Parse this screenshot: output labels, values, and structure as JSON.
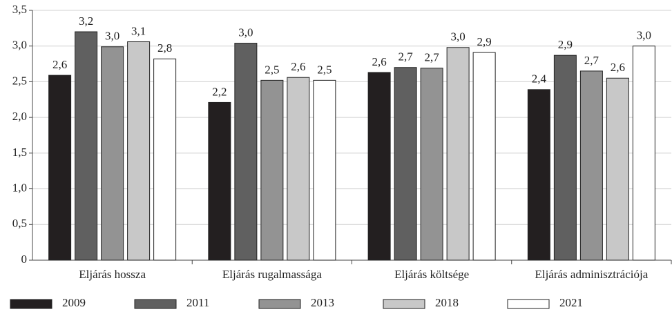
{
  "chart_data": {
    "type": "bar",
    "categories": [
      "Eljárás hossza",
      "Eljárás rugalmassága",
      "Eljárás költsége",
      "Eljárás adminisztrációja"
    ],
    "series": [
      {
        "name": "2009",
        "color": "#231f20",
        "values": [
          2.59,
          2.21,
          2.63,
          2.39
        ],
        "value_labels": [
          "2,6",
          "2,2",
          "2,6",
          "2,4"
        ]
      },
      {
        "name": "2011",
        "color": "#606060",
        "values": [
          3.2,
          3.04,
          2.7,
          2.87
        ],
        "value_labels": [
          "3,2",
          "3,0",
          "2,7",
          "2,9"
        ]
      },
      {
        "name": "2013",
        "color": "#939393",
        "values": [
          2.99,
          2.52,
          2.69,
          2.65
        ],
        "value_labels": [
          "3,0",
          "2,5",
          "2,7",
          "2,7"
        ]
      },
      {
        "name": "2018",
        "color": "#c8c8c8",
        "values": [
          3.06,
          2.56,
          2.98,
          2.55
        ],
        "value_labels": [
          "3,1",
          "2,6",
          "3,0",
          "2,6"
        ]
      },
      {
        "name": "2021",
        "color": "#ffffff",
        "values": [
          2.82,
          2.52,
          2.91,
          3.0
        ],
        "value_labels": [
          "2,8",
          "2,5",
          "2,9",
          "3,0"
        ]
      }
    ],
    "ylim": [
      0,
      3.5
    ],
    "yticks": [
      0,
      {
        "value": 0.5,
        "label": "0,5"
      },
      {
        "value": 1,
        "label": "1,0"
      },
      {
        "value": 1.5,
        "label": "1,5"
      },
      {
        "value": 2,
        "label": "2,0"
      },
      {
        "value": 2.5,
        "label": "2,5"
      },
      {
        "value": 3,
        "label": "3,0"
      },
      {
        "value": 3.5,
        "label": "3,5"
      }
    ],
    "grid": true,
    "legend": "bottom"
  }
}
